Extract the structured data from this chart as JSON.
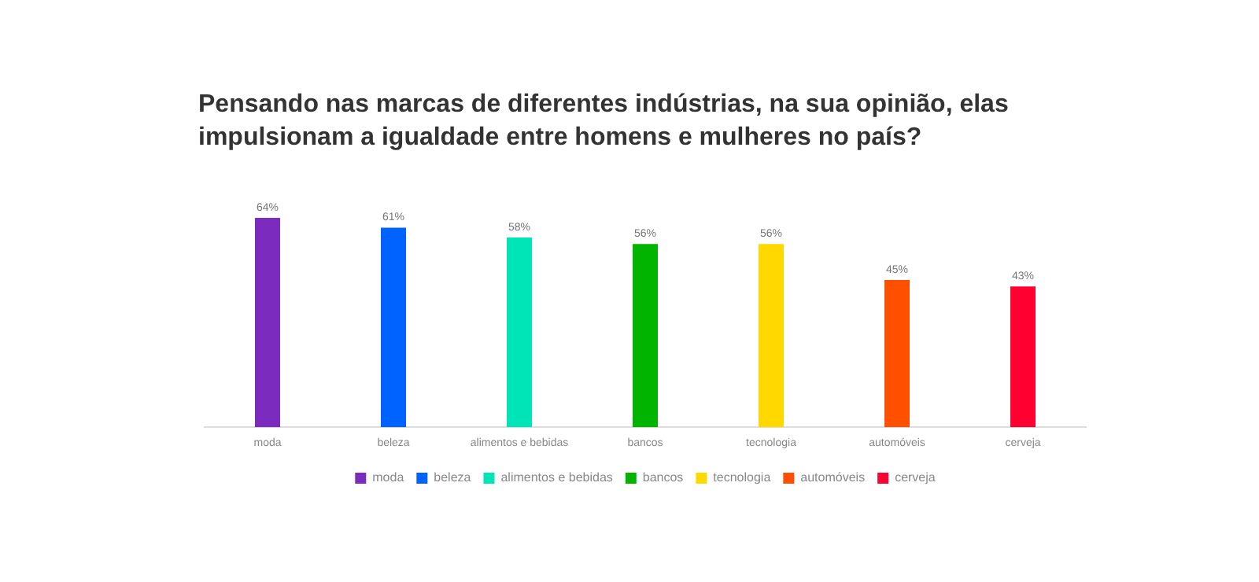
{
  "chart_data": {
    "type": "bar",
    "title": "Pensando nas marcas de diferentes indústrias, na sua opinião, elas impulsionam a igualdade entre homens e mulheres no país?",
    "categories": [
      "moda",
      "beleza",
      "alimentos e bebidas",
      "bancos",
      "tecnologia",
      "automóveis",
      "cerveja"
    ],
    "series": [
      {
        "name": "moda",
        "color": "#7b2cbf",
        "values": [
          64,
          null,
          null,
          null,
          null,
          null,
          null
        ],
        "value_labels": [
          "64%",
          null,
          null,
          null,
          null,
          null,
          null
        ]
      },
      {
        "name": "beleza",
        "color": "#0062ff",
        "values": [
          null,
          61,
          null,
          null,
          null,
          null,
          null
        ],
        "value_labels": [
          null,
          "61%",
          null,
          null,
          null,
          null,
          null
        ]
      },
      {
        "name": "alimentos e bebidas",
        "color": "#00e5b8",
        "values": [
          null,
          null,
          58,
          null,
          null,
          null,
          null
        ],
        "value_labels": [
          null,
          null,
          "58%",
          null,
          null,
          null,
          null
        ]
      },
      {
        "name": "bancos",
        "color": "#00b400",
        "values": [
          null,
          null,
          null,
          56,
          null,
          null,
          null
        ],
        "value_labels": [
          null,
          null,
          null,
          "56%",
          null,
          null,
          null
        ]
      },
      {
        "name": "tecnologia",
        "color": "#ffd800",
        "values": [
          null,
          null,
          null,
          null,
          56,
          null,
          null
        ],
        "value_labels": [
          null,
          null,
          null,
          null,
          "56%",
          null,
          null
        ]
      },
      {
        "name": "automóveis",
        "color": "#ff5000",
        "values": [
          null,
          null,
          null,
          null,
          null,
          45,
          null
        ],
        "value_labels": [
          null,
          null,
          null,
          null,
          null,
          "45%",
          null
        ]
      },
      {
        "name": "cerveja",
        "color": "#ff0030",
        "values": [
          null,
          null,
          null,
          null,
          null,
          null,
          43
        ],
        "value_labels": [
          null,
          null,
          null,
          null,
          null,
          null,
          "43%"
        ]
      }
    ],
    "legend": "bottom",
    "grid": false
  }
}
